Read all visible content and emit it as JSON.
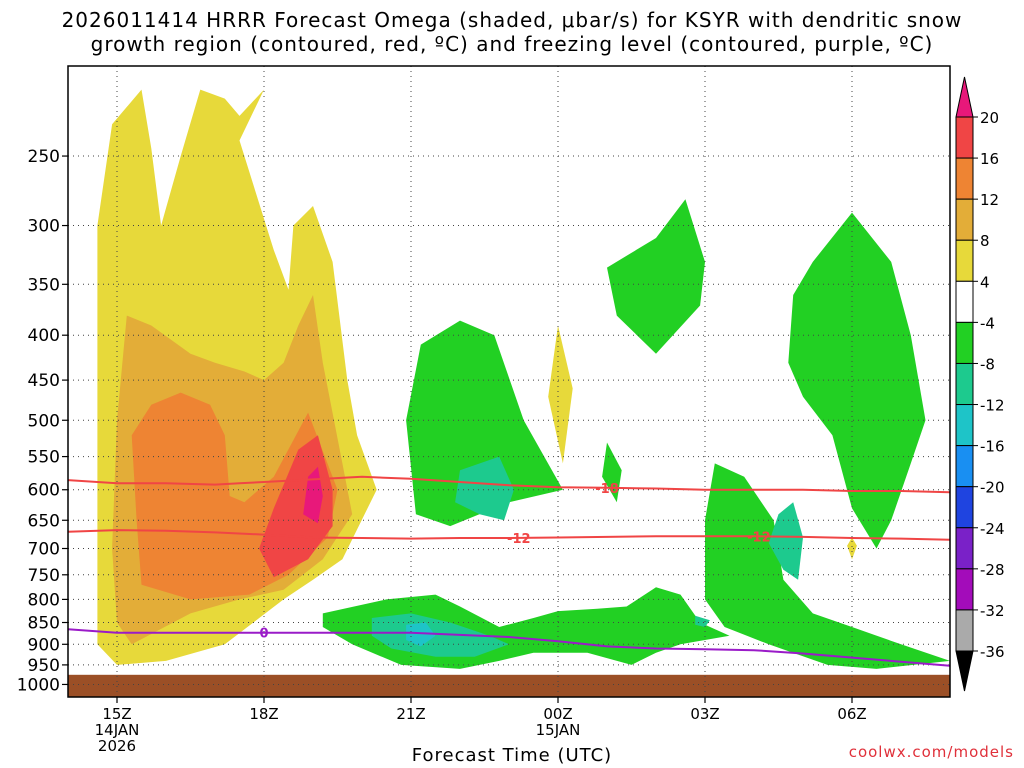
{
  "title_line1": "2026011414 HRRR Forecast Omega (shaded, μbar/s) for KSYR with dendritic snow",
  "title_line2": "growth region (contoured, red, ºC) and freezing level (contoured, purple, ºC)",
  "credit": "coolwx.com/models",
  "chart_data": {
    "type": "heatmap",
    "xlabel": "Forecast Time (UTC)",
    "ylabel": "",
    "x_ticks": [
      {
        "hour": 15,
        "lines": [
          "15Z",
          "14JAN",
          "2026"
        ]
      },
      {
        "hour": 18,
        "lines": [
          "18Z"
        ]
      },
      {
        "hour": 21,
        "lines": [
          "21Z"
        ]
      },
      {
        "hour": 24,
        "lines": [
          "00Z",
          "15JAN"
        ]
      },
      {
        "hour": 27,
        "lines": [
          "03Z"
        ]
      },
      {
        "hour": 30,
        "lines": [
          "06Z"
        ]
      }
    ],
    "xlim": [
      14,
      32
    ],
    "y_ticks": [
      250,
      300,
      350,
      400,
      450,
      500,
      550,
      600,
      650,
      700,
      750,
      800,
      850,
      900,
      950,
      1000
    ],
    "ylim_hPa": [
      200,
      1020
    ],
    "y_scale": "log-pressure",
    "ground_level_hPa": 975,
    "grid": true,
    "colorbar": {
      "units": "μbar/s",
      "labels": [
        "20",
        "16",
        "12",
        "8",
        "4",
        "-4",
        "-8",
        "-12",
        "-16",
        "-20",
        "-24",
        "-28",
        "-32",
        "-36"
      ],
      "colors": [
        "#e8187a",
        "#f04545",
        "#ee8433",
        "#e3ad38",
        "#e7d93a",
        "#ffffff",
        "#22d023",
        "#1dca8e",
        "#1ec4c8",
        "#198ff2",
        "#1f44e0",
        "#7a21c8",
        "#a30cba",
        "#aaaaaa",
        "#000000"
      ]
    },
    "omega_regions": [
      {
        "level": 4,
        "color": "#e7d93a",
        "points": [
          [
            14.9,
            230
          ],
          [
            15.5,
            210
          ],
          [
            15.7,
            245
          ],
          [
            15.9,
            300
          ],
          [
            16.3,
            250
          ],
          [
            16.7,
            210
          ],
          [
            17.2,
            215
          ],
          [
            17.5,
            225
          ],
          [
            18.0,
            210
          ],
          [
            17.5,
            240
          ],
          [
            18.2,
            320
          ],
          [
            18.5,
            355
          ],
          [
            18.6,
            300
          ],
          [
            19.0,
            285
          ],
          [
            19.4,
            330
          ],
          [
            19.7,
            450
          ],
          [
            19.9,
            520
          ],
          [
            20.3,
            600
          ],
          [
            19.6,
            720
          ],
          [
            19.0,
            760
          ],
          [
            18.4,
            800
          ],
          [
            17.2,
            900
          ],
          [
            16.0,
            940
          ],
          [
            15.0,
            950
          ],
          [
            14.6,
            900
          ],
          [
            14.6,
            500
          ],
          [
            14.6,
            300
          ]
        ]
      },
      {
        "level": 8,
        "color": "#e3ad38",
        "points": [
          [
            15.2,
            380
          ],
          [
            15.7,
            390
          ],
          [
            16.5,
            420
          ],
          [
            17.0,
            430
          ],
          [
            17.6,
            440
          ],
          [
            18.0,
            450
          ],
          [
            18.4,
            430
          ],
          [
            18.7,
            390
          ],
          [
            19.0,
            360
          ],
          [
            19.2,
            430
          ],
          [
            19.6,
            560
          ],
          [
            19.8,
            640
          ],
          [
            19.2,
            720
          ],
          [
            18.4,
            780
          ],
          [
            17.5,
            800
          ],
          [
            16.5,
            830
          ],
          [
            15.3,
            900
          ],
          [
            15.0,
            850
          ],
          [
            14.9,
            700
          ],
          [
            15.0,
            500
          ]
        ]
      },
      {
        "level": 12,
        "color": "#ee8433",
        "points": [
          [
            15.3,
            520
          ],
          [
            15.7,
            480
          ],
          [
            16.3,
            465
          ],
          [
            16.9,
            480
          ],
          [
            17.2,
            520
          ],
          [
            17.3,
            610
          ],
          [
            17.6,
            620
          ],
          [
            18.2,
            580
          ],
          [
            18.9,
            490
          ],
          [
            19.5,
            600
          ],
          [
            19.3,
            680
          ],
          [
            18.5,
            750
          ],
          [
            17.7,
            790
          ],
          [
            16.5,
            800
          ],
          [
            15.5,
            770
          ],
          [
            15.4,
            650
          ]
        ]
      },
      {
        "level": 16,
        "color": "#f04545",
        "points": [
          [
            18.7,
            540
          ],
          [
            19.1,
            520
          ],
          [
            19.4,
            600
          ],
          [
            19.4,
            660
          ],
          [
            18.9,
            720
          ],
          [
            18.2,
            755
          ],
          [
            17.9,
            700
          ],
          [
            18.2,
            630
          ]
        ]
      },
      {
        "level": 20,
        "color": "#e8187a",
        "points": [
          [
            18.9,
            580
          ],
          [
            19.1,
            565
          ],
          [
            19.2,
            610
          ],
          [
            19.1,
            655
          ],
          [
            18.8,
            640
          ]
        ]
      },
      {
        "level": 4,
        "color": "#e7d93a",
        "points": [
          [
            24.0,
            390
          ],
          [
            24.3,
            460
          ],
          [
            24.1,
            560
          ],
          [
            23.8,
            470
          ]
        ]
      },
      {
        "level": 4,
        "color": "#e7d93a",
        "points": [
          [
            30.0,
            680
          ],
          [
            30.1,
            695
          ],
          [
            30.0,
            720
          ],
          [
            29.9,
            695
          ]
        ]
      },
      {
        "level": -4,
        "color": "#22d023",
        "points": [
          [
            21.2,
            410
          ],
          [
            22.0,
            385
          ],
          [
            22.7,
            400
          ],
          [
            23.3,
            500
          ],
          [
            24.1,
            600
          ],
          [
            23.0,
            620
          ],
          [
            21.8,
            660
          ],
          [
            21.1,
            640
          ],
          [
            20.9,
            500
          ]
        ]
      },
      {
        "level": -4,
        "color": "#22d023",
        "points": [
          [
            25.0,
            335
          ],
          [
            26.0,
            310
          ],
          [
            26.6,
            280
          ],
          [
            27.0,
            330
          ],
          [
            26.9,
            370
          ],
          [
            26.0,
            420
          ],
          [
            25.2,
            380
          ]
        ]
      },
      {
        "level": -4,
        "color": "#22d023",
        "points": [
          [
            29.2,
            330
          ],
          [
            30.0,
            290
          ],
          [
            30.8,
            330
          ],
          [
            31.2,
            400
          ],
          [
            31.5,
            500
          ],
          [
            31.2,
            560
          ],
          [
            30.8,
            650
          ],
          [
            30.5,
            700
          ],
          [
            30.0,
            630
          ],
          [
            29.6,
            520
          ],
          [
            29.0,
            470
          ],
          [
            28.7,
            430
          ],
          [
            28.8,
            360
          ]
        ]
      },
      {
        "level": -4,
        "color": "#22d023",
        "points": [
          [
            27.2,
            560
          ],
          [
            27.8,
            580
          ],
          [
            28.4,
            650
          ],
          [
            28.6,
            760
          ],
          [
            29.2,
            830
          ],
          [
            30.0,
            860
          ],
          [
            31.0,
            900
          ],
          [
            32.0,
            940
          ],
          [
            30.5,
            960
          ],
          [
            29.5,
            950
          ],
          [
            28.3,
            900
          ],
          [
            27.4,
            860
          ],
          [
            27.0,
            800
          ],
          [
            27.0,
            650
          ]
        ]
      },
      {
        "level": -4,
        "color": "#22d023",
        "points": [
          [
            25.0,
            530
          ],
          [
            25.3,
            570
          ],
          [
            25.2,
            620
          ],
          [
            24.9,
            580
          ]
        ]
      },
      {
        "level": -4,
        "color": "#22d023",
        "points": [
          [
            19.2,
            830
          ],
          [
            20.5,
            800
          ],
          [
            21.5,
            790
          ],
          [
            22.0,
            815
          ],
          [
            22.8,
            860
          ],
          [
            23.5,
            840
          ],
          [
            24.0,
            825
          ],
          [
            24.8,
            820
          ],
          [
            25.4,
            815
          ],
          [
            26.0,
            775
          ],
          [
            26.5,
            790
          ],
          [
            26.9,
            850
          ],
          [
            27.5,
            880
          ],
          [
            26.5,
            900
          ],
          [
            26.0,
            920
          ],
          [
            25.5,
            950
          ],
          [
            24.6,
            920
          ],
          [
            23.5,
            920
          ],
          [
            22.8,
            940
          ],
          [
            22.0,
            960
          ],
          [
            20.8,
            950
          ],
          [
            19.8,
            900
          ],
          [
            19.2,
            860
          ]
        ]
      },
      {
        "level": -8,
        "color": "#1dca8e",
        "points": [
          [
            22.0,
            570
          ],
          [
            22.8,
            550
          ],
          [
            23.1,
            600
          ],
          [
            22.9,
            650
          ],
          [
            22.4,
            640
          ],
          [
            21.9,
            620
          ]
        ]
      },
      {
        "level": -8,
        "color": "#1dca8e",
        "points": [
          [
            28.5,
            640
          ],
          [
            28.8,
            620
          ],
          [
            29.0,
            680
          ],
          [
            28.9,
            760
          ],
          [
            28.6,
            740
          ],
          [
            28.3,
            690
          ]
        ]
      },
      {
        "level": -8,
        "color": "#1dca8e",
        "points": [
          [
            20.2,
            840
          ],
          [
            21.0,
            830
          ],
          [
            21.8,
            850
          ],
          [
            22.6,
            880
          ],
          [
            23.0,
            900
          ],
          [
            22.3,
            930
          ],
          [
            21.5,
            930
          ],
          [
            20.6,
            910
          ],
          [
            20.2,
            880
          ]
        ]
      },
      {
        "level": -8,
        "color": "#1dca8e",
        "points": [
          [
            26.8,
            835
          ],
          [
            27.1,
            845
          ],
          [
            27.0,
            860
          ],
          [
            26.8,
            855
          ]
        ]
      },
      {
        "level": -12,
        "color": "#1ec4c8",
        "points": [
          [
            20.9,
            855
          ],
          [
            21.3,
            850
          ],
          [
            21.5,
            880
          ],
          [
            21.2,
            905
          ],
          [
            20.9,
            890
          ]
        ]
      }
    ],
    "contours": [
      {
        "label": "-18",
        "color": "#f04545",
        "label_hour": 25.0,
        "points": [
          [
            14,
            585
          ],
          [
            15,
            590
          ],
          [
            16,
            590
          ],
          [
            17,
            592
          ],
          [
            17.5,
            590
          ],
          [
            18,
            588
          ],
          [
            19,
            584
          ],
          [
            20,
            580
          ],
          [
            21,
            583
          ],
          [
            22,
            588
          ],
          [
            23,
            593
          ],
          [
            24,
            596
          ],
          [
            25,
            597
          ],
          [
            26,
            598
          ],
          [
            27,
            600
          ],
          [
            28,
            600
          ],
          [
            29,
            600
          ],
          [
            30,
            602
          ],
          [
            31,
            602
          ],
          [
            32,
            604
          ]
        ]
      },
      {
        "label": "-12",
        "color": "#f04545",
        "label_hour": 23.2,
        "points": [
          [
            14,
            670
          ],
          [
            15,
            667
          ],
          [
            16,
            668
          ],
          [
            17,
            671
          ],
          [
            18,
            675
          ],
          [
            19,
            680
          ],
          [
            20,
            681
          ],
          [
            21,
            682
          ],
          [
            22,
            681
          ],
          [
            23,
            681
          ],
          [
            24,
            680
          ],
          [
            25,
            679
          ],
          [
            26,
            678
          ],
          [
            27,
            678
          ],
          [
            28,
            678
          ],
          [
            29,
            679
          ],
          [
            30,
            681
          ],
          [
            31,
            682
          ],
          [
            32,
            684
          ]
        ]
      },
      {
        "label": "-12",
        "color": "#f04545",
        "label_hour": 28.1,
        "points": []
      },
      {
        "label": "0",
        "color": "#9a1bc8",
        "label_hour": 18.0,
        "points": [
          [
            14,
            865
          ],
          [
            15,
            873
          ],
          [
            16,
            873
          ],
          [
            17,
            873
          ],
          [
            18,
            873
          ],
          [
            19,
            873
          ],
          [
            20,
            873
          ],
          [
            21,
            873
          ],
          [
            22,
            878
          ],
          [
            23,
            883
          ],
          [
            24,
            893
          ],
          [
            25,
            905
          ],
          [
            26,
            910
          ],
          [
            27,
            912
          ],
          [
            28,
            914
          ],
          [
            29,
            922
          ],
          [
            30,
            932
          ],
          [
            31,
            942
          ],
          [
            32,
            952
          ]
        ]
      }
    ]
  }
}
